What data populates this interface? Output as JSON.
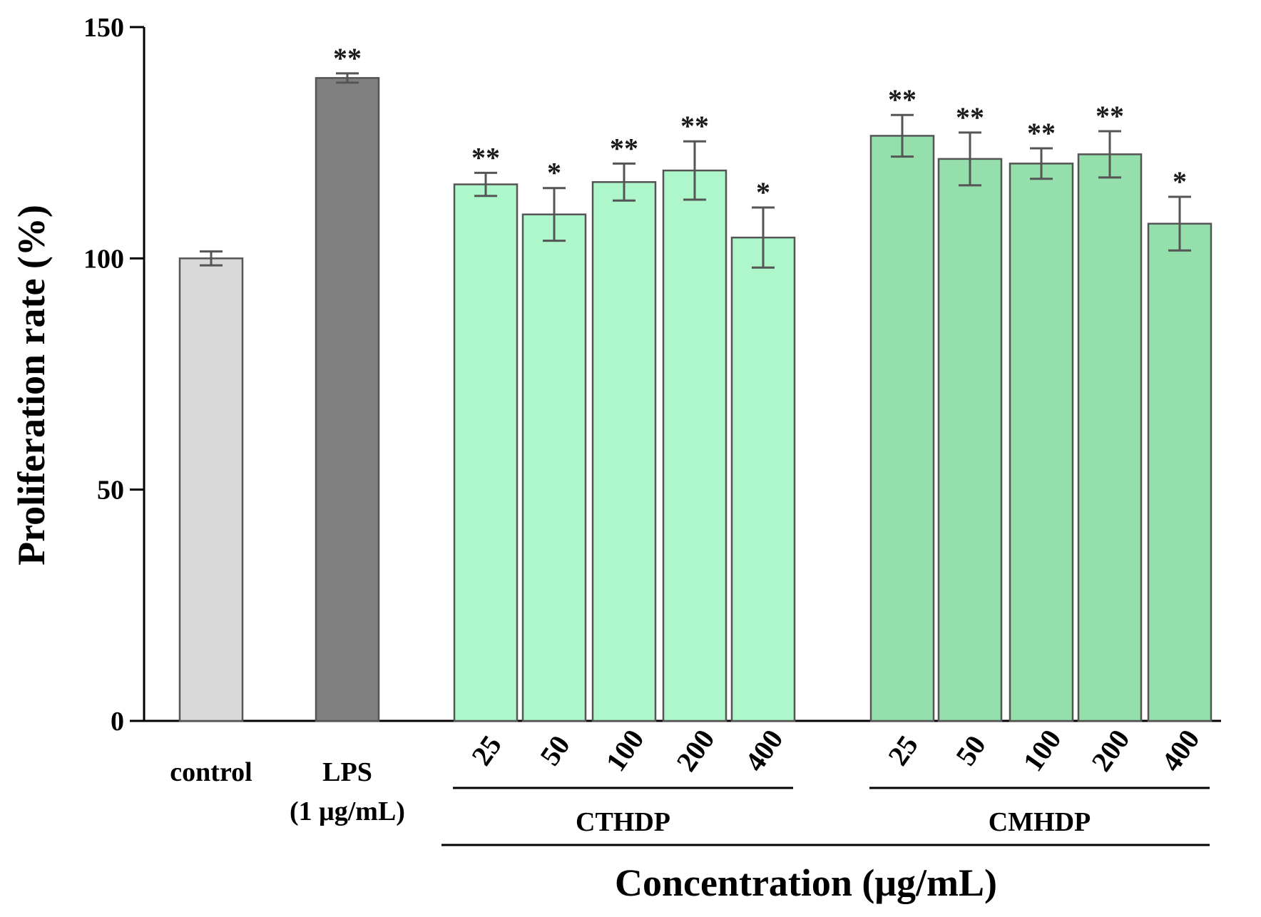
{
  "chart_data": {
    "type": "bar",
    "ylabel": "Proliferation rate (%)",
    "xlabel": "Concentration (μg/mL)",
    "ylim": [
      0,
      150
    ],
    "yticks": [
      0,
      50,
      100,
      150
    ],
    "yticks_text": [
      "0",
      "50",
      "100",
      "150"
    ],
    "bars": [
      {
        "id": "control",
        "group": "",
        "label": "control",
        "label2": "",
        "value": 100,
        "error": 1.5,
        "sig": "",
        "color": "#d9d9d9",
        "rotated": false
      },
      {
        "id": "lps",
        "group": "",
        "label": "LPS",
        "label2": "(1 μg/mL)",
        "value": 139,
        "error": 1.0,
        "sig": "**",
        "color": "#808080",
        "rotated": false
      },
      {
        "id": "cthdp-25",
        "group": "CTHDP",
        "label": "25",
        "label2": "",
        "value": 116,
        "error": 2.5,
        "sig": "**",
        "color": "#adf7ca",
        "rotated": true
      },
      {
        "id": "cthdp-50",
        "group": "CTHDP",
        "label": "50",
        "label2": "",
        "value": 109.5,
        "error": 5.7,
        "sig": "*",
        "color": "#adf7ca",
        "rotated": true
      },
      {
        "id": "cthdp-100",
        "group": "CTHDP",
        "label": "100",
        "label2": "",
        "value": 116.5,
        "error": 4.0,
        "sig": "**",
        "color": "#adf7ca",
        "rotated": true
      },
      {
        "id": "cthdp-200",
        "group": "CTHDP",
        "label": "200",
        "label2": "",
        "value": 119,
        "error": 6.3,
        "sig": "**",
        "color": "#adf7ca",
        "rotated": true
      },
      {
        "id": "cthdp-400",
        "group": "CTHDP",
        "label": "400",
        "label2": "",
        "value": 104.5,
        "error": 6.5,
        "sig": "*",
        "color": "#adf7ca",
        "rotated": true
      },
      {
        "id": "cmhdp-25",
        "group": "CMHDP",
        "label": "25",
        "label2": "",
        "value": 126.5,
        "error": 4.5,
        "sig": "**",
        "color": "#94dfab",
        "rotated": true
      },
      {
        "id": "cmhdp-50",
        "group": "CMHDP",
        "label": "50",
        "label2": "",
        "value": 121.5,
        "error": 5.7,
        "sig": "**",
        "color": "#94dfab",
        "rotated": true
      },
      {
        "id": "cmhdp-100",
        "group": "CMHDP",
        "label": "100",
        "label2": "",
        "value": 120.5,
        "error": 3.3,
        "sig": "**",
        "color": "#94dfab",
        "rotated": true
      },
      {
        "id": "cmhdp-200",
        "group": "CMHDP",
        "label": "200",
        "label2": "",
        "value": 122.5,
        "error": 5.0,
        "sig": "**",
        "color": "#94dfab",
        "rotated": true
      },
      {
        "id": "cmhdp-400",
        "group": "CMHDP",
        "label": "400",
        "label2": "",
        "value": 107.5,
        "error": 5.8,
        "sig": "*",
        "color": "#94dfab",
        "rotated": true
      }
    ],
    "groups": [
      "CTHDP",
      "CMHDP"
    ]
  }
}
